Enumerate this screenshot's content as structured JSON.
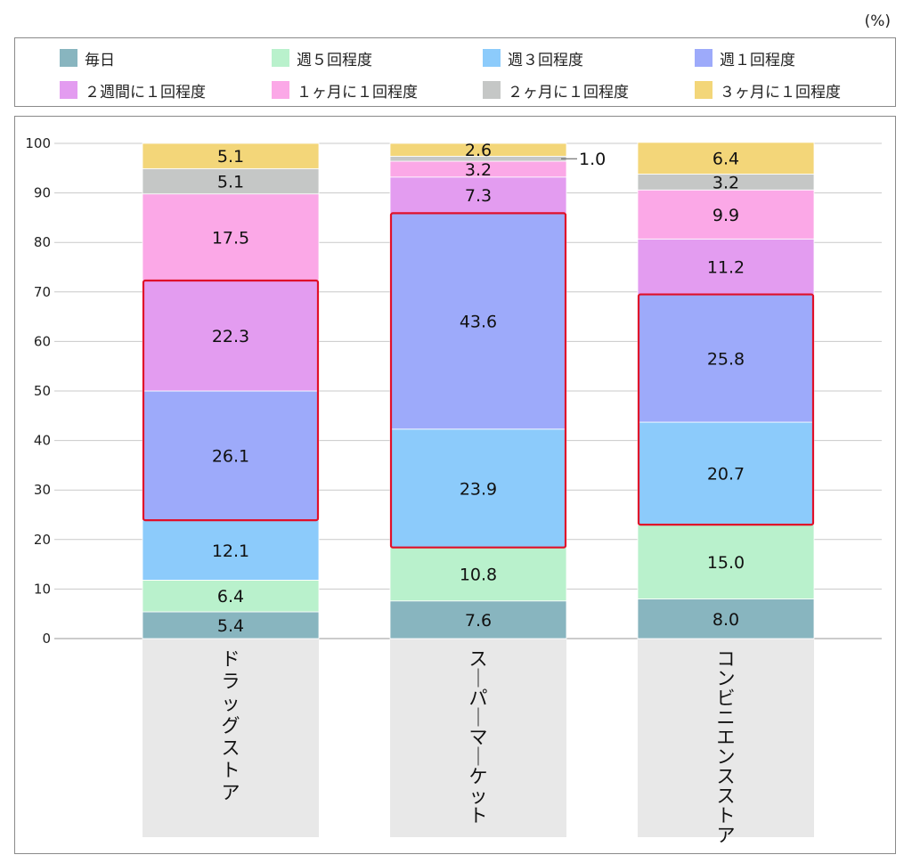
{
  "unit_label": "(%)",
  "chart_data": {
    "type": "bar",
    "stacked": true,
    "ylim": [
      0,
      100
    ],
    "yticks": [
      0,
      10,
      20,
      30,
      40,
      50,
      60,
      70,
      80,
      90,
      100
    ],
    "grid": true,
    "legend_position": "top",
    "categories": [
      "ドラッグストア",
      "スーパーマーケット",
      "コンビニエンスストア"
    ],
    "series": [
      {
        "name": "毎日",
        "color": "#88b5bf",
        "values": [
          5.4,
          7.6,
          8.0
        ]
      },
      {
        "name": "週５回程度",
        "color": "#b9f1cc",
        "values": [
          6.4,
          10.8,
          15.0
        ]
      },
      {
        "name": "週３回程度",
        "color": "#8ccbfb",
        "values": [
          12.1,
          23.9,
          20.7
        ]
      },
      {
        "name": "週１回程度",
        "color": "#9daafa",
        "values": [
          26.1,
          43.6,
          25.8
        ]
      },
      {
        "name": "２週間に１回程度",
        "color": "#e39cf0",
        "values": [
          22.3,
          7.3,
          11.2
        ]
      },
      {
        "name": "１ヶ月に１回程度",
        "color": "#fba8e7",
        "values": [
          17.5,
          3.2,
          9.9
        ]
      },
      {
        "name": "２ヶ月に１回程度",
        "color": "#c5c7c6",
        "values": [
          5.1,
          1.0,
          3.2
        ]
      },
      {
        "name": "３ヶ月に１回程度",
        "color": "#f3d679",
        "values": [
          5.1,
          2.6,
          6.4
        ]
      }
    ],
    "highlights": [
      {
        "category": "ドラッグストア",
        "from": 23.9,
        "to": 72.3
      },
      {
        "category": "スーパーマーケット",
        "from": 18.4,
        "to": 85.9
      },
      {
        "category": "コンビニエンスストア",
        "from": 23.0,
        "to": 69.5
      }
    ],
    "highlight_color": "#e0102a",
    "callout": {
      "category": "スーパーマーケット",
      "series": "２ヶ月に１回程度",
      "text": "1.0"
    }
  }
}
